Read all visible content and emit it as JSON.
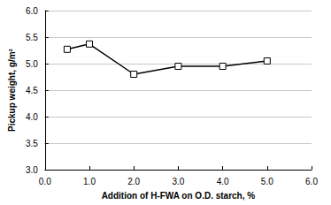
{
  "chart_data": {
    "type": "line",
    "x_label": "Addition of H-FWA on O.D. starch, %",
    "y_label": "Pickup weight, g/m²",
    "x": [
      0.5,
      1.0,
      2.0,
      3.0,
      4.0,
      5.0
    ],
    "values": [
      5.27,
      5.37,
      4.8,
      4.95,
      4.95,
      5.05
    ],
    "color": "#000000",
    "marker": "square",
    "line_style": "solid",
    "xlim": [
      0,
      6
    ],
    "xticks": [
      {
        "value": 0,
        "label": "0.0"
      },
      {
        "value": 1,
        "label": "1.0"
      },
      {
        "value": 2,
        "label": "2.0"
      },
      {
        "value": 3,
        "label": "3.0"
      },
      {
        "value": 4,
        "label": "4.0"
      },
      {
        "value": 5,
        "label": "5.0"
      },
      {
        "value": 6,
        "label": "6.0"
      }
    ],
    "ylim": [
      3,
      6
    ],
    "yticks": [
      {
        "value": 3,
        "label": "3.0"
      },
      {
        "value": 3.5,
        "label": "3.5"
      },
      {
        "value": 4,
        "label": "4.0"
      },
      {
        "value": 4.5,
        "label": "4.5"
      },
      {
        "value": 5,
        "label": "5.0"
      },
      {
        "value": 5.5,
        "label": "5.5"
      },
      {
        "value": 6,
        "label": "6.0"
      }
    ],
    "grid": true
  }
}
